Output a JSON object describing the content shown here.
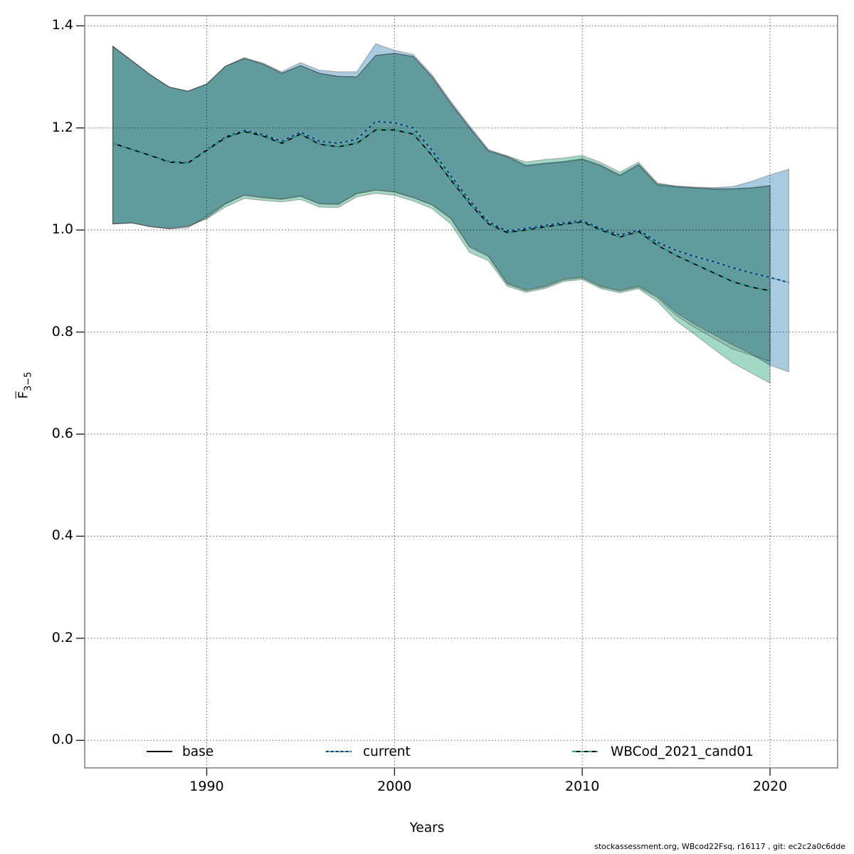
{
  "axes": {
    "xlabel": "Years",
    "ylabel_main": "F",
    "ylabel_sub": "3−5"
  },
  "legend": {
    "items": [
      {
        "label": "base",
        "series": "base"
      },
      {
        "label": "current",
        "series": "current"
      },
      {
        "label": "WBCod_2021_cand01",
        "series": "cand01"
      }
    ]
  },
  "footer": {
    "text": "stockassessment.org, WBcod22Fsq, r16117 , git: ec2c2a0c6dde"
  },
  "colors": {
    "base_line": "#000000",
    "current_line_light": "#6aaed6",
    "current_line_dark": "#16395c",
    "cand_line": "#2ba18a",
    "base_band": "#e6e6e6",
    "current_band": "#a9cbe0",
    "cand_band": "#a2d8c6",
    "band_edge": "#8f8f8f",
    "grid": "#3c3c3c",
    "box": "#7a7a7a",
    "tick": "#222222"
  },
  "chart_data": {
    "type": "line",
    "title": "",
    "xlabel": "Years",
    "ylabel": "Fbar(3-5)",
    "xlim": [
      1983.5,
      2023.6
    ],
    "ylim": [
      -0.054,
      1.42
    ],
    "xticks": [
      1990,
      2000,
      2010,
      2020
    ],
    "yticks": [
      0.0,
      0.2,
      0.4,
      0.6,
      0.8,
      1.0,
      1.2,
      1.4
    ],
    "grid": true,
    "legend_position": "bottom-inside",
    "series": [
      {
        "name": "base",
        "style": "solid",
        "years": [
          1985,
          1986,
          1987,
          1988,
          1989,
          1990,
          1991,
          1992,
          1993,
          1994,
          1995,
          1996,
          1997,
          1998,
          1999,
          2000,
          2001,
          2002,
          2003,
          2004,
          2005,
          2006,
          2007,
          2008,
          2009,
          2010,
          2011,
          2012,
          2013,
          2014,
          2015,
          2016,
          2017,
          2018,
          2019,
          2020
        ],
        "values": [
          1.17,
          1.158,
          1.146,
          1.133,
          1.131,
          1.156,
          1.181,
          1.193,
          1.184,
          1.17,
          1.188,
          1.168,
          1.163,
          1.17,
          1.196,
          1.196,
          1.188,
          1.146,
          1.098,
          1.052,
          1.012,
          0.995,
          1.0,
          1.006,
          1.011,
          1.016,
          1.0,
          0.986,
          0.997,
          0.97,
          0.95,
          0.933,
          0.916,
          0.899,
          0.888,
          0.881
        ],
        "lo": [
          1.012,
          1.014,
          1.006,
          1.002,
          1.004,
          1.028,
          1.052,
          1.068,
          1.063,
          1.06,
          1.066,
          1.051,
          1.05,
          1.071,
          1.078,
          1.074,
          1.063,
          1.049,
          1.022,
          0.966,
          0.948,
          0.894,
          0.881,
          0.888,
          0.902,
          0.906,
          0.888,
          0.88,
          0.888,
          0.867,
          0.833,
          0.809,
          0.788,
          0.767,
          0.755,
          0.743
        ],
        "hi": [
          1.36,
          1.332,
          1.304,
          1.28,
          1.272,
          1.286,
          1.321,
          1.336,
          1.325,
          1.307,
          1.322,
          1.307,
          1.301,
          1.3,
          1.342,
          1.346,
          1.34,
          1.3,
          1.248,
          1.2,
          1.155,
          1.143,
          1.125,
          1.13,
          1.133,
          1.138,
          1.125,
          1.106,
          1.127,
          1.088,
          1.084,
          1.082,
          1.08,
          1.08,
          1.082,
          1.086
        ]
      },
      {
        "name": "current",
        "style": "dotted",
        "years": [
          1985,
          1986,
          1987,
          1988,
          1989,
          1990,
          1991,
          1992,
          1993,
          1994,
          1995,
          1996,
          1997,
          1998,
          1999,
          2000,
          2001,
          2002,
          2003,
          2004,
          2005,
          2006,
          2007,
          2008,
          2009,
          2010,
          2011,
          2012,
          2013,
          2014,
          2015,
          2016,
          2017,
          2018,
          2019,
          2020,
          2021
        ],
        "values": [
          1.17,
          1.158,
          1.146,
          1.134,
          1.132,
          1.157,
          1.183,
          1.195,
          1.187,
          1.174,
          1.192,
          1.174,
          1.17,
          1.178,
          1.213,
          1.21,
          1.2,
          1.156,
          1.106,
          1.058,
          1.016,
          0.998,
          1.003,
          1.009,
          1.014,
          1.018,
          1.003,
          0.99,
          1.0,
          0.976,
          0.96,
          0.948,
          0.938,
          0.926,
          0.916,
          0.907,
          0.897
        ],
        "lo": [
          1.012,
          1.014,
          1.007,
          1.003,
          1.007,
          1.023,
          1.051,
          1.069,
          1.064,
          1.061,
          1.067,
          1.052,
          1.051,
          1.072,
          1.079,
          1.075,
          1.064,
          1.05,
          1.024,
          0.968,
          0.95,
          0.896,
          0.883,
          0.89,
          0.904,
          0.908,
          0.89,
          0.882,
          0.89,
          0.87,
          0.838,
          0.815,
          0.795,
          0.775,
          0.757,
          0.735,
          0.722
        ],
        "hi": [
          1.36,
          1.332,
          1.304,
          1.28,
          1.272,
          1.286,
          1.321,
          1.338,
          1.327,
          1.31,
          1.328,
          1.313,
          1.31,
          1.31,
          1.365,
          1.352,
          1.344,
          1.304,
          1.252,
          1.204,
          1.158,
          1.145,
          1.127,
          1.131,
          1.134,
          1.14,
          1.127,
          1.108,
          1.129,
          1.09,
          1.086,
          1.084,
          1.083,
          1.085,
          1.095,
          1.108,
          1.119
        ]
      },
      {
        "name": "WBCod_2021_cand01",
        "style": "dashed",
        "years": [
          1985,
          1986,
          1987,
          1988,
          1989,
          1990,
          1991,
          1992,
          1993,
          1994,
          1995,
          1996,
          1997,
          1998,
          1999,
          2000,
          2001,
          2002,
          2003,
          2004,
          2005,
          2006,
          2007,
          2008,
          2009,
          2010,
          2011,
          2012,
          2013,
          2014,
          2015,
          2016,
          2017,
          2018,
          2019,
          2020
        ],
        "values": [
          1.17,
          1.158,
          1.146,
          1.133,
          1.131,
          1.156,
          1.181,
          1.193,
          1.184,
          1.17,
          1.188,
          1.168,
          1.163,
          1.17,
          1.196,
          1.196,
          1.188,
          1.146,
          1.098,
          1.052,
          1.012,
          0.995,
          1.0,
          1.006,
          1.011,
          1.016,
          1.0,
          0.986,
          0.997,
          0.97,
          0.95,
          0.933,
          0.916,
          0.899,
          0.888,
          0.881
        ],
        "lo": [
          1.012,
          1.014,
          1.007,
          1.003,
          1.007,
          1.022,
          1.045,
          1.062,
          1.058,
          1.055,
          1.06,
          1.045,
          1.044,
          1.065,
          1.072,
          1.068,
          1.057,
          1.042,
          1.012,
          0.956,
          0.94,
          0.89,
          0.878,
          0.885,
          0.899,
          0.903,
          0.885,
          0.877,
          0.885,
          0.86,
          0.822,
          0.795,
          0.767,
          0.74,
          0.72,
          0.7
        ],
        "hi": [
          1.36,
          1.332,
          1.304,
          1.28,
          1.272,
          1.286,
          1.321,
          1.336,
          1.325,
          1.307,
          1.322,
          1.307,
          1.301,
          1.3,
          1.342,
          1.346,
          1.34,
          1.3,
          1.248,
          1.2,
          1.155,
          1.145,
          1.133,
          1.138,
          1.141,
          1.146,
          1.132,
          1.113,
          1.133,
          1.092,
          1.086,
          1.083,
          1.081,
          1.081,
          1.083,
          1.087
        ]
      }
    ]
  }
}
